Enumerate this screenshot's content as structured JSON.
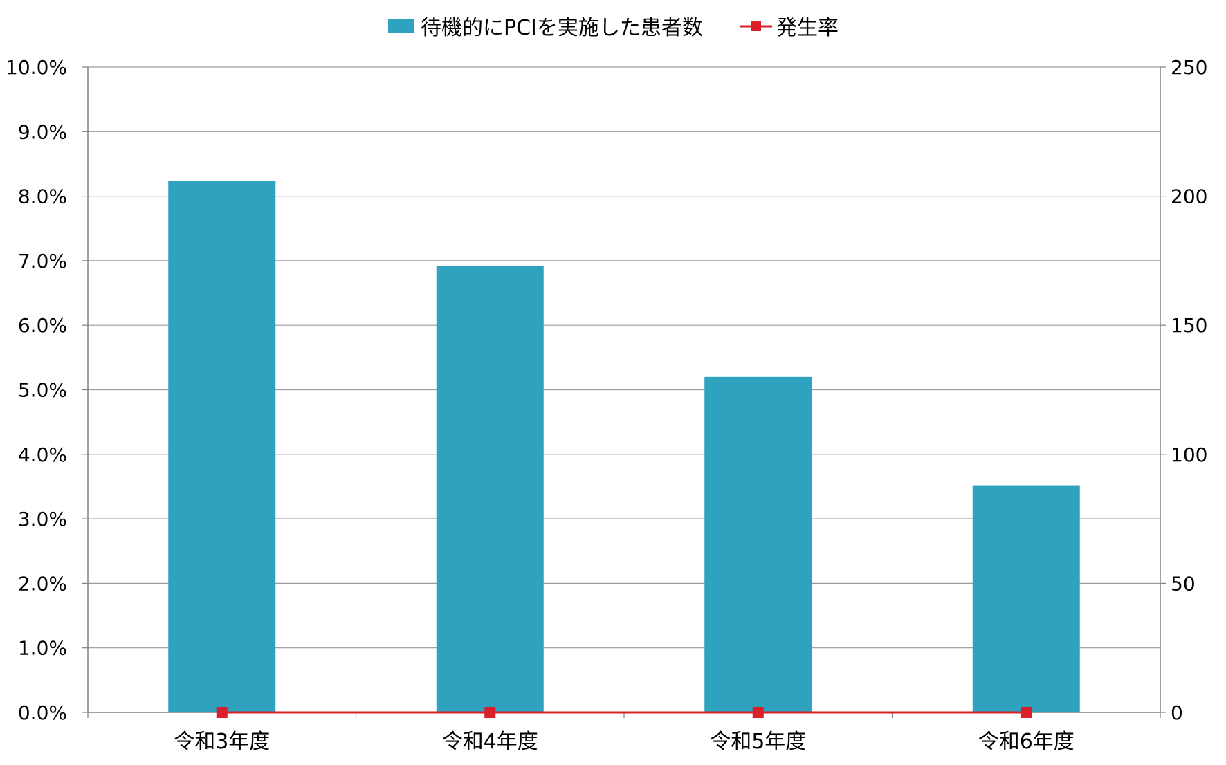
{
  "chart_data": {
    "type": "bar",
    "categories": [
      "令和3年度",
      "令和4年度",
      "令和5年度",
      "令和6年度"
    ],
    "series": [
      {
        "name": "待機的にPCIを実施した患者数",
        "type": "bar",
        "axis": "right",
        "color": "#2ea2bf",
        "values": [
          206,
          173,
          130,
          88
        ]
      },
      {
        "name": "発生率",
        "type": "line",
        "axis": "left",
        "color": "#d9202a",
        "marker": "square",
        "values": [
          0.0,
          0.0,
          0.0,
          0.0
        ]
      }
    ],
    "left_axis": {
      "ylim": [
        0,
        10
      ],
      "ticks": [
        "0.0%",
        "1.0%",
        "2.0%",
        "3.0%",
        "4.0%",
        "5.0%",
        "6.0%",
        "7.0%",
        "8.0%",
        "9.0%",
        "10.0%"
      ]
    },
    "right_axis": {
      "ylim": [
        0,
        250
      ],
      "ticks": [
        "0",
        "50",
        "100",
        "150",
        "200",
        "250"
      ]
    },
    "grid": true,
    "legend_position": "top-center"
  }
}
